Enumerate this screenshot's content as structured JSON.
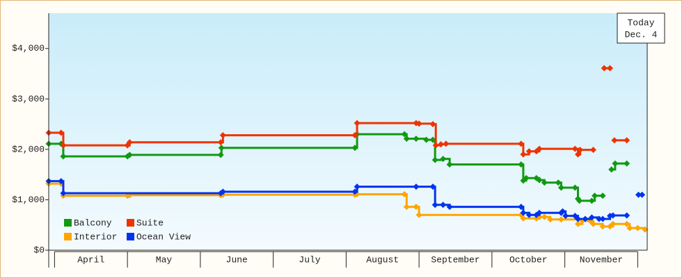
{
  "chart_data": {
    "type": "step-line",
    "annotation": [
      "Today",
      "Dec. 4"
    ],
    "xlim": [
      3.92,
      12.13
    ],
    "xticks": [
      {
        "value": 4.5,
        "label": "April"
      },
      {
        "value": 5.5,
        "label": "May"
      },
      {
        "value": 6.5,
        "label": "June"
      },
      {
        "value": 7.5,
        "label": "July"
      },
      {
        "value": 8.5,
        "label": "August"
      },
      {
        "value": 9.5,
        "label": "September"
      },
      {
        "value": 10.5,
        "label": "October"
      },
      {
        "value": 11.5,
        "label": "November"
      }
    ],
    "ylim": [
      0,
      4700
    ],
    "yticks": [
      {
        "value": 0,
        "label": "$0"
      },
      {
        "value": 1000,
        "label": "$1,000"
      },
      {
        "value": 2000,
        "label": "$2,000"
      },
      {
        "value": 3000,
        "label": "$3,000"
      },
      {
        "value": 4000,
        "label": "$4,000"
      }
    ],
    "legend": "lower-left",
    "series": [
      {
        "name": "Balcony",
        "color": "#119911",
        "x": [
          3.92,
          4.09,
          4.12,
          5.0,
          5.03,
          6.28,
          6.29,
          8.12,
          8.15,
          8.8,
          8.83,
          8.96,
          9.1,
          9.19,
          9.22,
          9.33,
          9.42,
          10.4,
          10.43,
          10.47,
          10.61,
          10.65,
          10.72,
          10.91,
          10.95,
          11.14,
          11.18,
          11.2,
          11.37,
          11.41,
          11.52,
          11.58,
          11.64,
          11.69,
          11.85
        ],
        "values": [
          2110,
          2110,
          1860,
          1860,
          1890,
          1890,
          2030,
          2030,
          2300,
          2300,
          2210,
          2210,
          2190,
          2190,
          1790,
          1810,
          1700,
          1700,
          1380,
          1430,
          1430,
          1390,
          1340,
          1340,
          1240,
          1240,
          1020,
          980,
          980,
          1080,
          1080,
          null,
          1600,
          1720,
          1720
        ]
      },
      {
        "name": "Suite",
        "color": "#ee3300",
        "x": [
          3.92,
          4.09,
          4.12,
          5.0,
          5.03,
          6.28,
          6.31,
          8.12,
          8.15,
          8.96,
          9.0,
          9.19,
          9.23,
          9.3,
          9.37,
          10.4,
          10.43,
          10.51,
          10.61,
          10.65,
          11.14,
          11.18,
          11.21,
          11.39,
          11.45,
          11.54,
          11.62,
          11.65,
          11.68,
          11.85
        ],
        "values": [
          2330,
          2330,
          2080,
          2080,
          2140,
          2140,
          2280,
          2280,
          2520,
          2520,
          2510,
          2500,
          2080,
          2100,
          2110,
          2110,
          1900,
          1960,
          1960,
          2010,
          2010,
          1900,
          1990,
          1990,
          null,
          3610,
          3610,
          null,
          2180,
          2180
        ]
      },
      {
        "name": "Interior",
        "color": "#ffa500",
        "x": [
          3.92,
          4.09,
          4.12,
          5.0,
          5.03,
          6.28,
          6.31,
          8.12,
          8.15,
          8.8,
          8.83,
          8.96,
          9.0,
          10.4,
          10.43,
          10.61,
          10.65,
          10.72,
          10.8,
          10.95,
          11.18,
          11.24,
          11.35,
          11.39,
          11.52,
          11.62,
          11.66,
          11.85,
          11.89,
          12.0,
          12.1
        ],
        "values": [
          1320,
          1320,
          1080,
          1080,
          1090,
          1090,
          1100,
          1100,
          1110,
          1110,
          860,
          860,
          700,
          700,
          630,
          630,
          660,
          660,
          610,
          610,
          520,
          580,
          580,
          520,
          470,
          470,
          520,
          520,
          440,
          440,
          410
        ]
      },
      {
        "name": "Ocean View",
        "color": "#0033ee",
        "x": [
          3.92,
          4.09,
          4.12,
          6.28,
          6.31,
          8.12,
          8.15,
          8.96,
          9.19,
          9.22,
          9.33,
          9.42,
          10.4,
          10.43,
          10.51,
          10.61,
          10.65,
          10.95,
          10.97,
          11.01,
          11.14,
          11.18,
          11.28,
          11.37,
          11.47,
          11.52,
          11.62,
          11.66,
          11.85,
          11.93,
          12.01,
          12.06
        ],
        "values": [
          1370,
          1370,
          1130,
          1130,
          1160,
          1160,
          1260,
          1260,
          1260,
          900,
          900,
          860,
          860,
          740,
          700,
          700,
          740,
          740,
          770,
          680,
          680,
          620,
          620,
          650,
          620,
          620,
          680,
          690,
          690,
          null,
          1100,
          1100
        ]
      }
    ]
  }
}
